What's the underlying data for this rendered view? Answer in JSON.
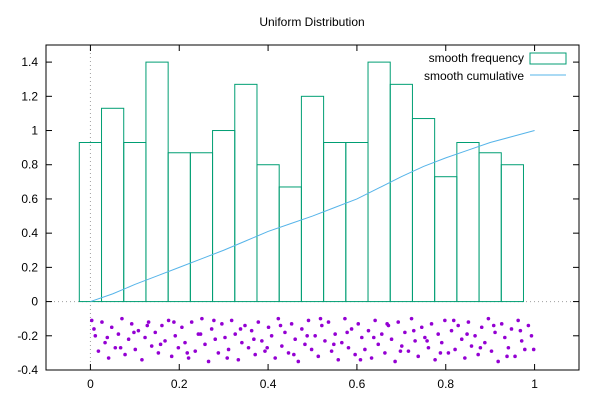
{
  "chart_data": {
    "type": "bar",
    "title": "Uniform Distribution",
    "xlabel": "",
    "ylabel": "",
    "xlim": [
      -0.1,
      1.1
    ],
    "ylim": [
      -0.4,
      1.5
    ],
    "x_ticks": [
      {
        "value": 0,
        "label": "0"
      },
      {
        "value": 0.2,
        "label": "0.2"
      },
      {
        "value": 0.4,
        "label": "0.4"
      },
      {
        "value": 0.6,
        "label": "0.6"
      },
      {
        "value": 0.8,
        "label": "0.8"
      },
      {
        "value": 1,
        "label": "1"
      }
    ],
    "y_ticks": [
      {
        "value": -0.4,
        "label": "-0.4"
      },
      {
        "value": -0.2,
        "label": "-0.2"
      },
      {
        "value": 0,
        "label": "0"
      },
      {
        "value": 0.2,
        "label": "0.2"
      },
      {
        "value": 0.4,
        "label": "0.4"
      },
      {
        "value": 0.6,
        "label": "0.6"
      },
      {
        "value": 0.8,
        "label": "0.8"
      },
      {
        "value": 1,
        "label": "1"
      },
      {
        "value": 1.2,
        "label": "1.2"
      },
      {
        "value": 1.4,
        "label": "1.4"
      }
    ],
    "grid": false,
    "legend_position": "top-right",
    "colors": {
      "frequency": "#009e73",
      "cumulative": "#56b4e9",
      "points": "#9400d3",
      "zero_axis": "#a0a0a0"
    },
    "series": [
      {
        "name": "smooth frequency",
        "type": "histogram",
        "bin_width": 0.05,
        "bins": [
          {
            "x": 0.0,
            "value": 0.93
          },
          {
            "x": 0.05,
            "value": 1.13
          },
          {
            "x": 0.1,
            "value": 0.93
          },
          {
            "x": 0.15,
            "value": 1.4
          },
          {
            "x": 0.2,
            "value": 0.87
          },
          {
            "x": 0.25,
            "value": 0.87
          },
          {
            "x": 0.3,
            "value": 1.0
          },
          {
            "x": 0.35,
            "value": 1.27
          },
          {
            "x": 0.4,
            "value": 0.8
          },
          {
            "x": 0.45,
            "value": 0.67
          },
          {
            "x": 0.5,
            "value": 1.2
          },
          {
            "x": 0.55,
            "value": 0.93
          },
          {
            "x": 0.6,
            "value": 0.93
          },
          {
            "x": 0.65,
            "value": 1.4
          },
          {
            "x": 0.7,
            "value": 1.27
          },
          {
            "x": 0.75,
            "value": 1.07
          },
          {
            "x": 0.8,
            "value": 0.73
          },
          {
            "x": 0.85,
            "value": 0.93
          },
          {
            "x": 0.9,
            "value": 0.87
          },
          {
            "x": 0.95,
            "value": 0.8
          }
        ]
      },
      {
        "name": "smooth cumulative",
        "type": "line",
        "points": [
          [
            0.0,
            0.0
          ],
          [
            0.05,
            0.045
          ],
          [
            0.1,
            0.1
          ],
          [
            0.15,
            0.15
          ],
          [
            0.2,
            0.2
          ],
          [
            0.25,
            0.25
          ],
          [
            0.3,
            0.3
          ],
          [
            0.35,
            0.355
          ],
          [
            0.4,
            0.41
          ],
          [
            0.45,
            0.455
          ],
          [
            0.5,
            0.5
          ],
          [
            0.55,
            0.55
          ],
          [
            0.6,
            0.6
          ],
          [
            0.65,
            0.665
          ],
          [
            0.7,
            0.73
          ],
          [
            0.75,
            0.79
          ],
          [
            0.8,
            0.84
          ],
          [
            0.85,
            0.885
          ],
          [
            0.9,
            0.93
          ],
          [
            0.95,
            0.965
          ],
          [
            1.0,
            1.0
          ]
        ]
      },
      {
        "name": "",
        "type": "scatter",
        "y_range": [
          -0.35,
          -0.1
        ],
        "points": [
          [
            0.003,
            -0.11
          ],
          [
            0.011,
            -0.2
          ],
          [
            0.018,
            -0.29
          ],
          [
            0.026,
            -0.12
          ],
          [
            0.033,
            -0.24
          ],
          [
            0.041,
            -0.33
          ],
          [
            0.048,
            -0.15
          ],
          [
            0.056,
            -0.27
          ],
          [
            0.063,
            -0.19
          ],
          [
            0.071,
            -0.1
          ],
          [
            0.078,
            -0.31
          ],
          [
            0.086,
            -0.22
          ],
          [
            0.093,
            -0.13
          ],
          [
            0.101,
            -0.28
          ],
          [
            0.108,
            -0.17
          ],
          [
            0.116,
            -0.34
          ],
          [
            0.123,
            -0.21
          ],
          [
            0.131,
            -0.12
          ],
          [
            0.138,
            -0.26
          ],
          [
            0.146,
            -0.18
          ],
          [
            0.153,
            -0.3
          ],
          [
            0.161,
            -0.14
          ],
          [
            0.168,
            -0.23
          ],
          [
            0.176,
            -0.11
          ],
          [
            0.183,
            -0.32
          ],
          [
            0.191,
            -0.2
          ],
          [
            0.198,
            -0.27
          ],
          [
            0.206,
            -0.15
          ],
          [
            0.213,
            -0.24
          ],
          [
            0.221,
            -0.33
          ],
          [
            0.228,
            -0.12
          ],
          [
            0.236,
            -0.29
          ],
          [
            0.243,
            -0.19
          ],
          [
            0.251,
            -0.1
          ],
          [
            0.258,
            -0.25
          ],
          [
            0.266,
            -0.35
          ],
          [
            0.273,
            -0.16
          ],
          [
            0.281,
            -0.22
          ],
          [
            0.288,
            -0.3
          ],
          [
            0.296,
            -0.13
          ],
          [
            0.303,
            -0.21
          ],
          [
            0.311,
            -0.28
          ],
          [
            0.318,
            -0.11
          ],
          [
            0.326,
            -0.19
          ],
          [
            0.333,
            -0.34
          ],
          [
            0.341,
            -0.24
          ],
          [
            0.348,
            -0.14
          ],
          [
            0.356,
            -0.27
          ],
          [
            0.363,
            -0.17
          ],
          [
            0.371,
            -0.31
          ],
          [
            0.378,
            -0.12
          ],
          [
            0.386,
            -0.23
          ],
          [
            0.393,
            -0.29
          ],
          [
            0.401,
            -0.15
          ],
          [
            0.408,
            -0.2
          ],
          [
            0.416,
            -0.33
          ],
          [
            0.423,
            -0.1
          ],
          [
            0.431,
            -0.26
          ],
          [
            0.438,
            -0.18
          ],
          [
            0.446,
            -0.3
          ],
          [
            0.453,
            -0.13
          ],
          [
            0.461,
            -0.22
          ],
          [
            0.468,
            -0.35
          ],
          [
            0.476,
            -0.16
          ],
          [
            0.483,
            -0.25
          ],
          [
            0.491,
            -0.11
          ],
          [
            0.498,
            -0.28
          ],
          [
            0.506,
            -0.2
          ],
          [
            0.513,
            -0.32
          ],
          [
            0.521,
            -0.14
          ],
          [
            0.528,
            -0.23
          ],
          [
            0.536,
            -0.12
          ],
          [
            0.543,
            -0.29
          ],
          [
            0.551,
            -0.19
          ],
          [
            0.558,
            -0.34
          ],
          [
            0.566,
            -0.24
          ],
          [
            0.573,
            -0.1
          ],
          [
            0.581,
            -0.27
          ],
          [
            0.588,
            -0.16
          ],
          [
            0.596,
            -0.31
          ],
          [
            0.603,
            -0.13
          ],
          [
            0.611,
            -0.21
          ],
          [
            0.618,
            -0.28
          ],
          [
            0.626,
            -0.17
          ],
          [
            0.633,
            -0.33
          ],
          [
            0.641,
            -0.11
          ],
          [
            0.648,
            -0.25
          ],
          [
            0.656,
            -0.19
          ],
          [
            0.663,
            -0.3
          ],
          [
            0.671,
            -0.14
          ],
          [
            0.678,
            -0.22
          ],
          [
            0.686,
            -0.35
          ],
          [
            0.693,
            -0.12
          ],
          [
            0.701,
            -0.26
          ],
          [
            0.708,
            -0.18
          ],
          [
            0.716,
            -0.29
          ],
          [
            0.723,
            -0.1
          ],
          [
            0.731,
            -0.23
          ],
          [
            0.738,
            -0.32
          ],
          [
            0.746,
            -0.15
          ],
          [
            0.753,
            -0.21
          ],
          [
            0.761,
            -0.27
          ],
          [
            0.768,
            -0.13
          ],
          [
            0.776,
            -0.34
          ],
          [
            0.783,
            -0.19
          ],
          [
            0.791,
            -0.24
          ],
          [
            0.798,
            -0.11
          ],
          [
            0.806,
            -0.3
          ],
          [
            0.813,
            -0.17
          ],
          [
            0.821,
            -0.28
          ],
          [
            0.828,
            -0.14
          ],
          [
            0.836,
            -0.22
          ],
          [
            0.843,
            -0.33
          ],
          [
            0.851,
            -0.12
          ],
          [
            0.858,
            -0.26
          ],
          [
            0.866,
            -0.2
          ],
          [
            0.873,
            -0.31
          ],
          [
            0.881,
            -0.15
          ],
          [
            0.888,
            -0.24
          ],
          [
            0.896,
            -0.1
          ],
          [
            0.903,
            -0.29
          ],
          [
            0.911,
            -0.18
          ],
          [
            0.918,
            -0.35
          ],
          [
            0.926,
            -0.13
          ],
          [
            0.933,
            -0.21
          ],
          [
            0.941,
            -0.27
          ],
          [
            0.948,
            -0.16
          ],
          [
            0.956,
            -0.32
          ],
          [
            0.963,
            -0.11
          ],
          [
            0.971,
            -0.23
          ],
          [
            0.978,
            -0.28
          ],
          [
            0.986,
            -0.14
          ],
          [
            0.993,
            -0.2
          ],
          [
            0.008,
            -0.16
          ],
          [
            0.038,
            -0.21
          ],
          [
            0.068,
            -0.27
          ],
          [
            0.098,
            -0.18
          ],
          [
            0.128,
            -0.14
          ],
          [
            0.158,
            -0.25
          ],
          [
            0.188,
            -0.12
          ],
          [
            0.218,
            -0.3
          ],
          [
            0.248,
            -0.19
          ],
          [
            0.278,
            -0.11
          ],
          [
            0.308,
            -0.33
          ],
          [
            0.338,
            -0.16
          ],
          [
            0.368,
            -0.22
          ],
          [
            0.398,
            -0.27
          ],
          [
            0.428,
            -0.14
          ],
          [
            0.458,
            -0.31
          ],
          [
            0.488,
            -0.2
          ],
          [
            0.518,
            -0.1
          ],
          [
            0.548,
            -0.25
          ],
          [
            0.578,
            -0.18
          ],
          [
            0.608,
            -0.34
          ],
          [
            0.638,
            -0.21
          ],
          [
            0.668,
            -0.13
          ],
          [
            0.698,
            -0.29
          ],
          [
            0.728,
            -0.17
          ],
          [
            0.758,
            -0.23
          ],
          [
            0.788,
            -0.3
          ],
          [
            0.818,
            -0.11
          ],
          [
            0.848,
            -0.19
          ],
          [
            0.878,
            -0.27
          ],
          [
            0.908,
            -0.14
          ],
          [
            0.938,
            -0.32
          ],
          [
            0.968,
            -0.17
          ],
          [
            0.998,
            -0.28
          ]
        ]
      }
    ]
  }
}
